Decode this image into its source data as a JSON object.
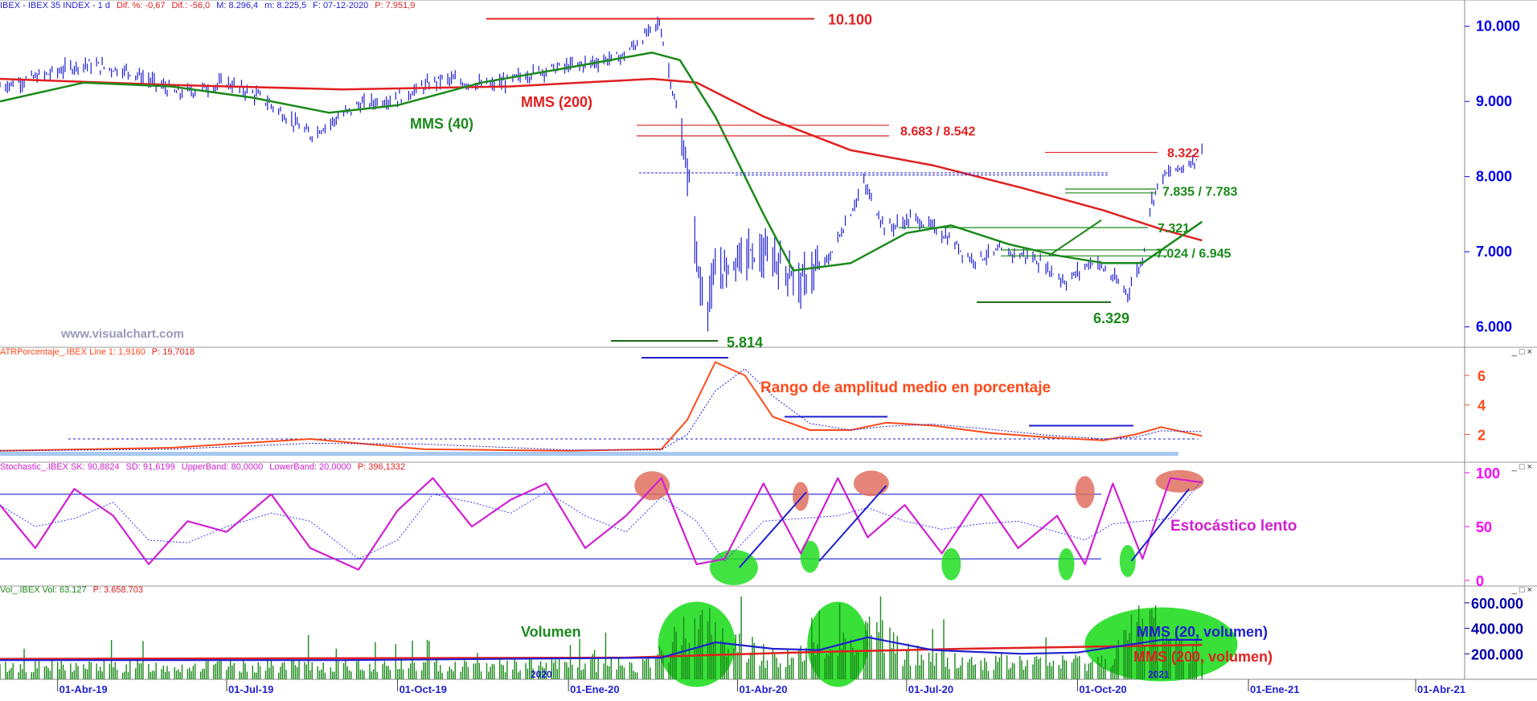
{
  "panes": {
    "price": {
      "header": [
        "IBEX - IBEX 35 INDEX - 1 d",
        "Dif. %: -0,67",
        "Dif.: -56,0",
        "M: 8.296,4",
        "m: 8.225,5",
        "F: 07-12-2020",
        "P: 7.951,9"
      ],
      "watermark": "www.visualchart.com"
    },
    "atr": {
      "header": [
        "ATRPorcentaje_.IBEX Line 1: 1,9160",
        "P: 19,7018"
      ],
      "annotation": "Rango de amplitud medio en porcentaje"
    },
    "stoch": {
      "header": [
        "Stochastic_.IBEX SK: 90,8824",
        "SD: 91,6199",
        "UpperBand: 80,0000",
        "LowerBand: 20,0000",
        "P: 396,1332"
      ],
      "annotation": "Estocástico lento"
    },
    "vol": {
      "header": [
        "Vol_.IBEX Vol: 63.127",
        "P: 3.658.703"
      ],
      "label_volumen": "Volumen",
      "label_mms20": "MMS (20, volumen)",
      "label_mms200": "MMS (200, volumen)",
      "year_label_2020": "2020",
      "year_label_2021": "2021"
    }
  },
  "window_controls": "_ □ ×",
  "colors": {
    "price_bars": "#1f1fd0",
    "mms40": "#1a8a1a",
    "mms200": "#e02020",
    "atr_line": "#ff4a1a",
    "stoch": "#d020d0",
    "vol_bars": "#1a8a1a",
    "axis_price": "#0000ee",
    "axis_atr": "#ff4a1a",
    "axis_stoch": "#ff00ff",
    "axis_vol": "#0000aa",
    "highlight_green": "#22dd22",
    "highlight_red": "#e07060"
  },
  "chart_data": [
    {
      "type": "line",
      "title": "",
      "x_ticks": [
        "01-Abr-19",
        "01-Jul-19",
        "01-Oct-19",
        "01-Ene-20",
        "01-Abr-20",
        "01-Jul-20",
        "01-Oct-20",
        "01-Ene-21",
        "01-Abr-21"
      ],
      "y_ticks": [
        "6.000",
        "7.000",
        "8.000",
        "9.000",
        "10.000"
      ],
      "ylim": [
        5750,
        10200
      ],
      "series": [
        {
          "name": "MMS (40)",
          "x": [
            "2019-03-01",
            "2019-04-15",
            "2019-06-01",
            "2019-07-15",
            "2019-08-25",
            "2019-10-01",
            "2019-11-15",
            "2020-01-01",
            "2020-02-15",
            "2020-03-01",
            "2020-03-20",
            "2020-04-15",
            "2020-05-01",
            "2020-06-01",
            "2020-07-01",
            "2020-07-25",
            "2020-08-25",
            "2020-09-20",
            "2020-10-15",
            "2020-11-05",
            "2020-12-07"
          ],
          "values": [
            9000,
            9250,
            9200,
            9050,
            8850,
            8950,
            9250,
            9450,
            9650,
            9550,
            8800,
            7500,
            6750,
            6850,
            7250,
            7350,
            7100,
            6950,
            6850,
            6850,
            7400
          ]
        },
        {
          "name": "MMS (200)",
          "x": [
            "2019-03-01",
            "2019-06-01",
            "2019-09-01",
            "2019-12-01",
            "2020-02-15",
            "2020-03-10",
            "2020-04-15",
            "2020-06-01",
            "2020-07-15",
            "2020-09-01",
            "2020-10-15",
            "2020-11-15",
            "2020-12-07"
          ],
          "values": [
            9300,
            9220,
            9160,
            9200,
            9300,
            9250,
            8800,
            8350,
            8150,
            7850,
            7550,
            7300,
            7150
          ]
        }
      ],
      "price_path": {
        "x": [
          "2019-03-01",
          "2019-03-25",
          "2019-04-15",
          "2019-05-10",
          "2019-06-05",
          "2019-07-01",
          "2019-07-20",
          "2019-08-15",
          "2019-09-10",
          "2019-10-01",
          "2019-10-25",
          "2019-11-20",
          "2019-12-15",
          "2020-01-10",
          "2020-01-30",
          "2020-02-19",
          "2020-02-28",
          "2020-03-06",
          "2020-03-12",
          "2020-03-16",
          "2020-03-20",
          "2020-03-27",
          "2020-04-05",
          "2020-04-20",
          "2020-05-05",
          "2020-05-20",
          "2020-06-08",
          "2020-06-20",
          "2020-07-05",
          "2020-07-20",
          "2020-08-05",
          "2020-08-20",
          "2020-09-05",
          "2020-09-25",
          "2020-10-10",
          "2020-10-28",
          "2020-11-05",
          "2020-11-09",
          "2020-11-15",
          "2020-11-25",
          "2020-12-07"
        ],
        "values": [
          9200,
          9350,
          9500,
          9400,
          9100,
          9250,
          9050,
          8550,
          8950,
          9050,
          9300,
          9200,
          9400,
          9500,
          9600,
          10050,
          8900,
          7900,
          6500,
          6300,
          6700,
          6800,
          7000,
          6900,
          6600,
          6900,
          7900,
          7300,
          7450,
          7250,
          6900,
          7000,
          6950,
          6600,
          6900,
          6450,
          6900,
          7600,
          8000,
          8100,
          8300
        ]
      },
      "levels": [
        {
          "label": "10.100",
          "value": 10100
        },
        {
          "label": "8.683 / 8.542",
          "values": [
            8683,
            8542
          ]
        },
        {
          "label": "8.322",
          "value": 8322
        },
        {
          "label": "7.835 / 7.783",
          "values": [
            7835,
            7783
          ]
        },
        {
          "label": "7.321",
          "value": 7321
        },
        {
          "label": "7.024 / 6.945",
          "values": [
            7024,
            6945
          ]
        },
        {
          "label": "6.329",
          "value": 6329
        },
        {
          "label": "5.814",
          "value": 5814
        }
      ],
      "annotations": [
        "MMS (40)",
        "MMS (200)"
      ]
    },
    {
      "type": "line",
      "title": "",
      "y_ticks": [
        "2",
        "4",
        "6"
      ],
      "ylim": [
        0.5,
        7.2
      ],
      "series": [
        {
          "name": "ATRPorcentaje",
          "x": [
            "2019-03-01",
            "2019-06-01",
            "2019-08-15",
            "2019-10-15",
            "2020-01-01",
            "2020-02-20",
            "2020-03-05",
            "2020-03-20",
            "2020-04-05",
            "2020-04-20",
            "2020-05-10",
            "2020-06-01",
            "2020-06-20",
            "2020-07-15",
            "2020-08-15",
            "2020-09-15",
            "2020-10-15",
            "2020-11-01",
            "2020-11-15",
            "2020-12-07"
          ],
          "values": [
            0.9,
            1.1,
            1.7,
            1.0,
            0.9,
            1.0,
            3.0,
            6.9,
            6.0,
            3.2,
            2.3,
            2.3,
            2.8,
            2.6,
            2.1,
            1.8,
            1.6,
            2.0,
            2.5,
            1.9
          ]
        }
      ],
      "reference_line": 1.7
    },
    {
      "type": "line",
      "title": "",
      "y_ticks": [
        "0",
        "50",
        "100"
      ],
      "ylim": [
        0,
        100
      ],
      "bands": {
        "upper": 80,
        "lower": 20
      },
      "series": [
        {
          "name": "SK",
          "x": [
            "2019-03-01",
            "2019-03-20",
            "2019-04-10",
            "2019-05-01",
            "2019-05-20",
            "2019-06-10",
            "2019-07-01",
            "2019-07-25",
            "2019-08-15",
            "2019-09-10",
            "2019-10-01",
            "2019-10-20",
            "2019-11-10",
            "2019-12-01",
            "2019-12-20",
            "2020-01-10",
            "2020-02-01",
            "2020-02-20",
            "2020-03-10",
            "2020-03-25",
            "2020-04-15",
            "2020-05-05",
            "2020-05-25",
            "2020-06-10",
            "2020-06-30",
            "2020-07-20",
            "2020-08-10",
            "2020-08-30",
            "2020-09-20",
            "2020-10-05",
            "2020-10-20",
            "2020-11-05",
            "2020-11-20",
            "2020-12-07"
          ],
          "values": [
            70,
            30,
            85,
            60,
            15,
            55,
            45,
            80,
            30,
            10,
            65,
            95,
            50,
            75,
            90,
            30,
            60,
            95,
            15,
            20,
            90,
            25,
            95,
            40,
            70,
            25,
            80,
            30,
            60,
            15,
            90,
            20,
            95,
            91
          ]
        },
        {
          "name": "SD",
          "x": [
            "2019-03-01",
            "2019-06-01",
            "2019-09-01",
            "2019-12-01",
            "2020-03-01",
            "2020-06-01",
            "2020-09-01",
            "2020-12-07"
          ],
          "values": [
            65,
            50,
            20,
            80,
            60,
            50,
            40,
            92
          ]
        }
      ]
    },
    {
      "type": "bar",
      "title": "",
      "y_ticks": [
        "200.000",
        "400.000",
        "600.000"
      ],
      "ylim": [
        0,
        650000
      ],
      "series": [
        {
          "name": "MMS (20, volumen)",
          "x": [
            "2019-03-01",
            "2019-09-01",
            "2020-02-20",
            "2020-03-20",
            "2020-04-20",
            "2020-05-15",
            "2020-06-10",
            "2020-07-15",
            "2020-09-01",
            "2020-10-01",
            "2020-11-15",
            "2020-12-07"
          ],
          "values": [
            150000,
            150000,
            170000,
            290000,
            240000,
            230000,
            330000,
            230000,
            200000,
            210000,
            310000,
            310000
          ]
        },
        {
          "name": "MMS (200, volumen)",
          "x": [
            "2019-03-01",
            "2020-02-01",
            "2020-05-01",
            "2020-08-01",
            "2020-12-07"
          ],
          "values": [
            160000,
            170000,
            210000,
            240000,
            270000
          ]
        }
      ],
      "volume_profile": {
        "x": [
          "2019-03-01",
          "2019-09-01",
          "2020-02-15",
          "2020-03-10",
          "2020-03-25",
          "2020-04-20",
          "2020-05-15",
          "2020-06-10",
          "2020-07-01",
          "2020-08-01",
          "2020-09-15",
          "2020-10-15",
          "2020-11-09",
          "2020-11-25",
          "2020-12-07"
        ],
        "values": [
          130000,
          140000,
          150000,
          620000,
          400000,
          230000,
          250000,
          520000,
          260000,
          180000,
          170000,
          190000,
          640000,
          380000,
          300000
        ]
      }
    }
  ]
}
